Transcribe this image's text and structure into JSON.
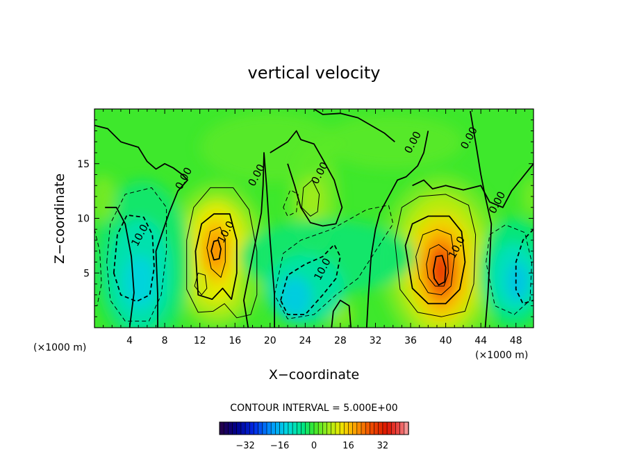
{
  "chart_data": {
    "type": "heatmap",
    "title": "vertical velocity",
    "xlabel": "X−coordinate",
    "ylabel": "Z−coordinate",
    "x_unit": "(×1000 m)",
    "z_unit": "(×1000 m)",
    "xlim": [
      0,
      50
    ],
    "ylim": [
      0,
      20
    ],
    "x_ticks": [
      4,
      8,
      12,
      16,
      20,
      24,
      28,
      32,
      36,
      40,
      44,
      48
    ],
    "y_ticks": [
      5,
      10,
      15
    ],
    "x_tick_labels": [
      "4",
      "8",
      "12",
      "16",
      "20",
      "24",
      "28",
      "32",
      "36",
      "40",
      "44",
      "48"
    ],
    "y_tick_labels": [
      "5",
      "10",
      "15"
    ],
    "contour_interval_text": "CONTOUR INTERVAL = 5.000E+00",
    "contour_interval": 5,
    "contour_labels": [
      {
        "text": "0.00",
        "x": 10.5,
        "z": 13.5
      },
      {
        "text": "0.00",
        "x": 18.8,
        "z": 13.8
      },
      {
        "text": "0.00",
        "x": 26.0,
        "z": 14.0
      },
      {
        "text": "0.00",
        "x": 36.6,
        "z": 16.8
      },
      {
        "text": "0.00",
        "x": 43.0,
        "z": 17.2
      },
      {
        "text": "0.00",
        "x": 46.2,
        "z": 11.3
      },
      {
        "text": "10.0",
        "x": 5.5,
        "z": 8.3
      },
      {
        "text": "10.0",
        "x": 15.3,
        "z": 8.6
      },
      {
        "text": "10.0",
        "x": 26.3,
        "z": 5.2
      },
      {
        "text": "10.0",
        "x": 41.6,
        "z": 7.2
      }
    ],
    "field_extrema": [
      {
        "kind": "updraft",
        "x": 13.8,
        "z": 7.0,
        "value": 22
      },
      {
        "kind": "updraft",
        "x": 39.5,
        "z": 5.2,
        "value": 30
      },
      {
        "kind": "downdraft",
        "x": 5.5,
        "z": 4.5,
        "value": -14
      },
      {
        "kind": "downdraft",
        "x": 23.0,
        "z": 3.0,
        "value": -15
      },
      {
        "kind": "downdraft",
        "x": 48.0,
        "z": 4.5,
        "value": -15
      }
    ],
    "colorbar": {
      "range": [
        -44,
        44
      ],
      "ticks": [
        -32,
        -16,
        0,
        16,
        32
      ],
      "tick_labels": [
        "−32",
        "−16",
        "0",
        "16",
        "32"
      ],
      "segments": 44
    },
    "grid": false,
    "legend": "none"
  }
}
